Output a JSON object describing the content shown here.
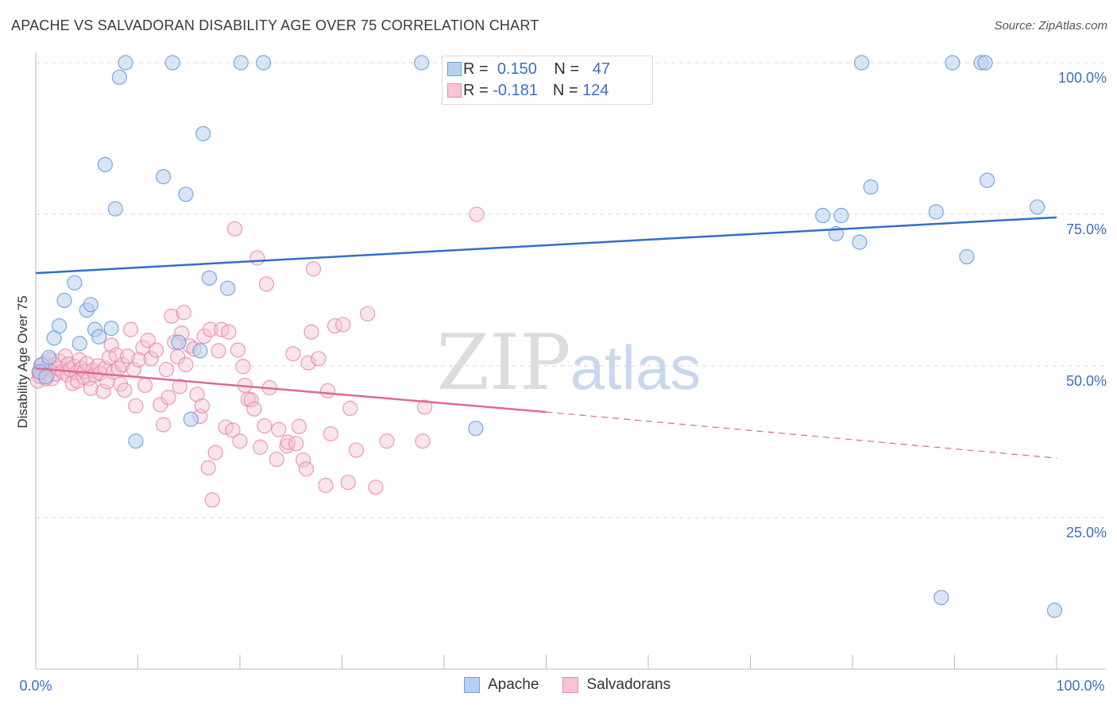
{
  "header": {
    "title": "APACHE VS SALVADORAN DISABILITY AGE OVER 75 CORRELATION CHART",
    "source": "Source: ZipAtlas.com"
  },
  "watermark": {
    "zip": "ZIP",
    "atlas": "atlas"
  },
  "legend": {
    "r_label": "R =",
    "n_label": "N =",
    "apache": {
      "r": "0.150",
      "n": "47"
    },
    "salvadoran": {
      "r": "-0.181",
      "n": "124"
    }
  },
  "colors": {
    "apache": "#6a9fdd",
    "apache_fill": "#b8d0f0",
    "apache_line": "#2e6fcc",
    "salvadoran": "#e88aa8",
    "salvadoran_fill": "#f6c4d4",
    "salvadoran_line": "#e06890",
    "grid": "#d5d5d5",
    "tick_label": "#3a6fc4"
  },
  "chart_data": {
    "type": "scatter",
    "title": "APACHE VS SALVADORAN DISABILITY AGE OVER 75 CORRELATION CHART",
    "xlabel": "",
    "ylabel": "Disability Age Over 75",
    "xlim": [
      0,
      100
    ],
    "ylim": [
      0,
      100
    ],
    "x_tick_labels": [
      "0.0%",
      "100.0%"
    ],
    "y_ticks": [
      25,
      50,
      75,
      100
    ],
    "y_tick_labels": [
      "25.0%",
      "50.0%",
      "75.0%",
      "100.0%"
    ],
    "grid": "horizontal dashed",
    "legend_position": "top-center",
    "series": [
      {
        "name": "Apache",
        "trend": {
          "x": [
            0,
            100
          ],
          "y": [
            65.3,
            74.5
          ],
          "style": "solid"
        },
        "points": [
          [
            0.6,
            50.2
          ],
          [
            1.3,
            51.4
          ],
          [
            1.8,
            54.6
          ],
          [
            2.3,
            56.6
          ],
          [
            2.8,
            60.8
          ],
          [
            3.8,
            63.7
          ],
          [
            4.3,
            53.7
          ],
          [
            5.0,
            59.2
          ],
          [
            5.4,
            60.1
          ],
          [
            5.8,
            56.0
          ],
          [
            6.2,
            54.8
          ],
          [
            6.8,
            83.2
          ],
          [
            7.4,
            56.2
          ],
          [
            7.8,
            75.9
          ],
          [
            8.2,
            97.6
          ],
          [
            8.8,
            100
          ],
          [
            9.8,
            37.6
          ],
          [
            12.5,
            81.2
          ],
          [
            13.4,
            100
          ],
          [
            14.0,
            53.9
          ],
          [
            14.7,
            78.3
          ],
          [
            15.2,
            41.2
          ],
          [
            16.1,
            52.5
          ],
          [
            16.4,
            88.3
          ],
          [
            17.0,
            64.5
          ],
          [
            18.8,
            62.8
          ],
          [
            20.1,
            100
          ],
          [
            22.3,
            100
          ],
          [
            37.8,
            100
          ],
          [
            43.1,
            39.7
          ],
          [
            77.1,
            74.8
          ],
          [
            78.4,
            71.8
          ],
          [
            78.9,
            74.8
          ],
          [
            80.7,
            70.4
          ],
          [
            80.9,
            100
          ],
          [
            81.8,
            79.5
          ],
          [
            88.2,
            75.4
          ],
          [
            88.7,
            11.8
          ],
          [
            89.8,
            100
          ],
          [
            91.2,
            68.0
          ],
          [
            92.6,
            100
          ],
          [
            93.0,
            100
          ],
          [
            93.2,
            80.6
          ],
          [
            98.1,
            76.2
          ],
          [
            99.8,
            9.7
          ],
          [
            0.4,
            49.0
          ],
          [
            1.0,
            48.2
          ]
        ]
      },
      {
        "name": "Salvadorans",
        "trend": {
          "x": [
            0,
            50
          ],
          "y": [
            49.6,
            42.4
          ],
          "style": "solid",
          "extended_x": [
            50,
            100
          ],
          "extended_y": [
            42.4,
            34.8
          ],
          "extended_style": "dashed"
        },
        "points": [
          [
            0.2,
            47.5
          ],
          [
            0.3,
            49.0
          ],
          [
            0.4,
            48.3
          ],
          [
            0.5,
            50.1
          ],
          [
            0.6,
            48.8
          ],
          [
            0.8,
            49.2
          ],
          [
            0.9,
            50.5
          ],
          [
            1.0,
            47.9
          ],
          [
            1.1,
            49.8
          ],
          [
            1.2,
            48.6
          ],
          [
            1.4,
            51.0
          ],
          [
            1.5,
            49.3
          ],
          [
            1.6,
            47.9
          ],
          [
            1.8,
            50.2
          ],
          [
            2.0,
            48.7
          ],
          [
            2.2,
            49.6
          ],
          [
            2.3,
            50.8
          ],
          [
            2.6,
            49.0
          ],
          [
            2.9,
            51.6
          ],
          [
            3.1,
            48.5
          ],
          [
            3.2,
            50.3
          ],
          [
            3.4,
            49.4
          ],
          [
            3.6,
            47.1
          ],
          [
            3.8,
            49.9
          ],
          [
            4.0,
            48.9
          ],
          [
            4.1,
            47.5
          ],
          [
            4.3,
            51.0
          ],
          [
            4.5,
            49.6
          ],
          [
            4.7,
            48.1
          ],
          [
            4.8,
            49.1
          ],
          [
            5.0,
            50.4
          ],
          [
            5.2,
            47.9
          ],
          [
            5.4,
            46.3
          ],
          [
            5.6,
            49.3
          ],
          [
            5.8,
            48.5
          ],
          [
            6.1,
            50.0
          ],
          [
            6.3,
            48.8
          ],
          [
            6.6,
            45.8
          ],
          [
            6.8,
            49.6
          ],
          [
            7.0,
            47.4
          ],
          [
            7.2,
            51.4
          ],
          [
            7.4,
            53.4
          ],
          [
            7.6,
            49.0
          ],
          [
            7.9,
            51.8
          ],
          [
            8.1,
            49.6
          ],
          [
            8.3,
            47.0
          ],
          [
            8.5,
            50.2
          ],
          [
            8.7,
            46.0
          ],
          [
            9.0,
            51.6
          ],
          [
            9.3,
            56.0
          ],
          [
            9.6,
            49.4
          ],
          [
            9.8,
            43.4
          ],
          [
            10.1,
            51.0
          ],
          [
            10.5,
            53.0
          ],
          [
            10.7,
            46.8
          ],
          [
            11.0,
            54.2
          ],
          [
            11.3,
            51.2
          ],
          [
            11.8,
            52.6
          ],
          [
            12.2,
            43.6
          ],
          [
            12.5,
            40.3
          ],
          [
            12.8,
            49.4
          ],
          [
            13.0,
            44.8
          ],
          [
            13.3,
            58.2
          ],
          [
            13.6,
            53.9
          ],
          [
            13.9,
            51.5
          ],
          [
            14.1,
            46.6
          ],
          [
            14.3,
            55.4
          ],
          [
            14.5,
            58.8
          ],
          [
            14.7,
            50.2
          ],
          [
            15.1,
            53.3
          ],
          [
            15.5,
            52.8
          ],
          [
            15.8,
            45.3
          ],
          [
            16.1,
            41.7
          ],
          [
            16.3,
            43.4
          ],
          [
            16.5,
            54.9
          ],
          [
            16.9,
            33.2
          ],
          [
            17.1,
            56.0
          ],
          [
            17.3,
            27.9
          ],
          [
            17.6,
            35.7
          ],
          [
            17.9,
            52.5
          ],
          [
            18.2,
            56.0
          ],
          [
            18.6,
            39.9
          ],
          [
            18.9,
            55.6
          ],
          [
            19.3,
            39.4
          ],
          [
            19.5,
            72.6
          ],
          [
            19.8,
            52.6
          ],
          [
            20.0,
            37.6
          ],
          [
            20.3,
            49.9
          ],
          [
            20.5,
            46.8
          ],
          [
            20.8,
            44.5
          ],
          [
            21.1,
            44.4
          ],
          [
            21.4,
            42.9
          ],
          [
            21.7,
            67.8
          ],
          [
            22.0,
            36.6
          ],
          [
            22.4,
            40.1
          ],
          [
            22.6,
            63.5
          ],
          [
            22.9,
            46.4
          ],
          [
            23.6,
            34.6
          ],
          [
            23.8,
            39.5
          ],
          [
            24.6,
            36.8
          ],
          [
            24.7,
            37.4
          ],
          [
            25.2,
            52.0
          ],
          [
            25.5,
            37.2
          ],
          [
            25.8,
            40.0
          ],
          [
            26.2,
            34.5
          ],
          [
            26.5,
            33.0
          ],
          [
            26.7,
            50.5
          ],
          [
            27.0,
            55.6
          ],
          [
            27.2,
            66.0
          ],
          [
            27.7,
            51.2
          ],
          [
            28.4,
            30.3
          ],
          [
            28.6,
            45.9
          ],
          [
            28.9,
            38.8
          ],
          [
            29.3,
            56.6
          ],
          [
            30.1,
            56.8
          ],
          [
            30.6,
            30.8
          ],
          [
            30.8,
            43.0
          ],
          [
            31.4,
            36.1
          ],
          [
            32.5,
            58.6
          ],
          [
            33.3,
            30.0
          ],
          [
            34.4,
            37.6
          ],
          [
            37.9,
            37.6
          ],
          [
            38.1,
            43.2
          ],
          [
            43.2,
            75.0
          ]
        ]
      }
    ]
  }
}
